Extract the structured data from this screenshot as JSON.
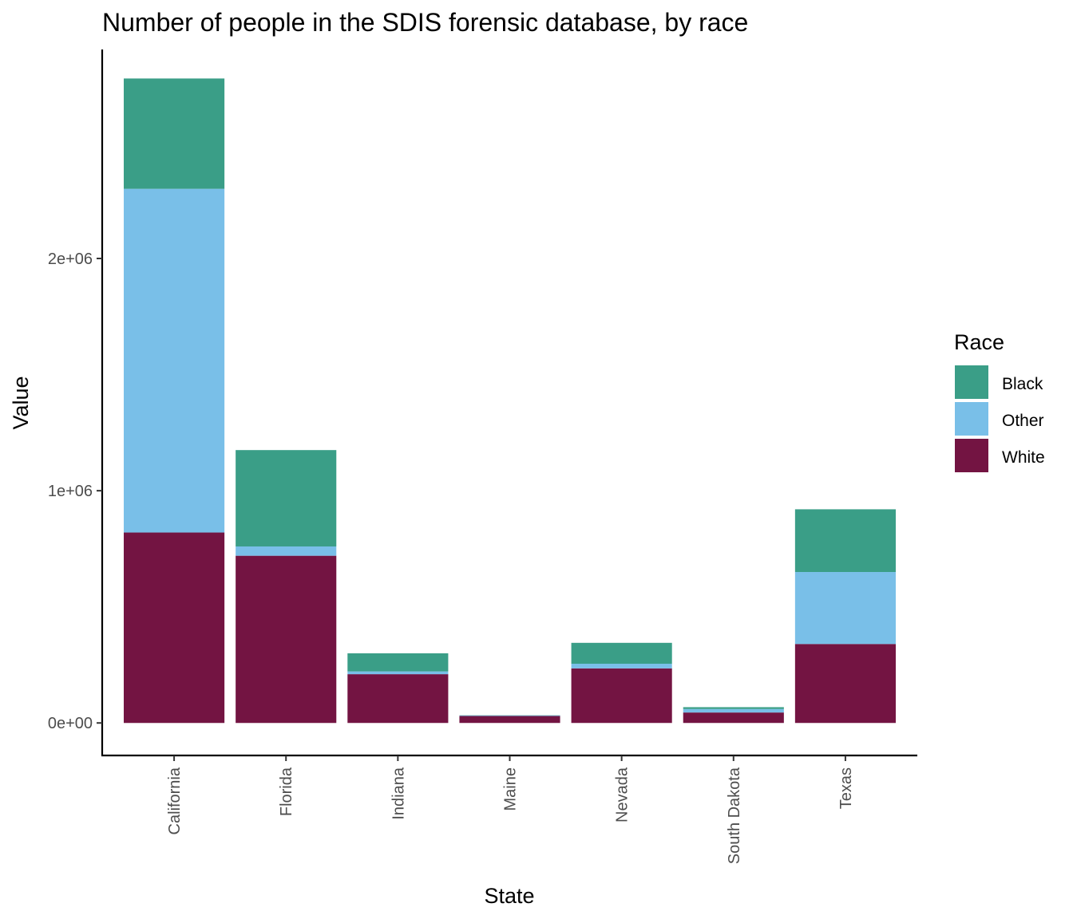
{
  "chart_data": {
    "type": "bar",
    "stacked": true,
    "title": "Number of people in the SDIS forensic database, by race",
    "xlabel": "State",
    "ylabel": "Value",
    "categories": [
      "California",
      "Florida",
      "Indiana",
      "Maine",
      "Nevada",
      "South Dakota",
      "Texas"
    ],
    "series": [
      {
        "name": "White",
        "color": "#731442",
        "values": [
          820000,
          720000,
          210000,
          30000,
          235000,
          45000,
          340000
        ]
      },
      {
        "name": "Other",
        "color": "#79BFE8",
        "values": [
          1480000,
          40000,
          12000,
          2000,
          20000,
          15000,
          310000
        ]
      },
      {
        "name": "Black",
        "color": "#3A9E87",
        "values": [
          475000,
          415000,
          78000,
          1000,
          90000,
          8000,
          270000
        ]
      }
    ],
    "ylim": [
      -140000,
      2900000
    ],
    "yticks": [
      0,
      1000000,
      2000000
    ],
    "ytick_labels": [
      "0e+00",
      "1e+06",
      "2e+06"
    ],
    "grid": false,
    "legend": {
      "title": "Race",
      "position": "right",
      "entries": [
        "Black",
        "Other",
        "White"
      ]
    }
  }
}
